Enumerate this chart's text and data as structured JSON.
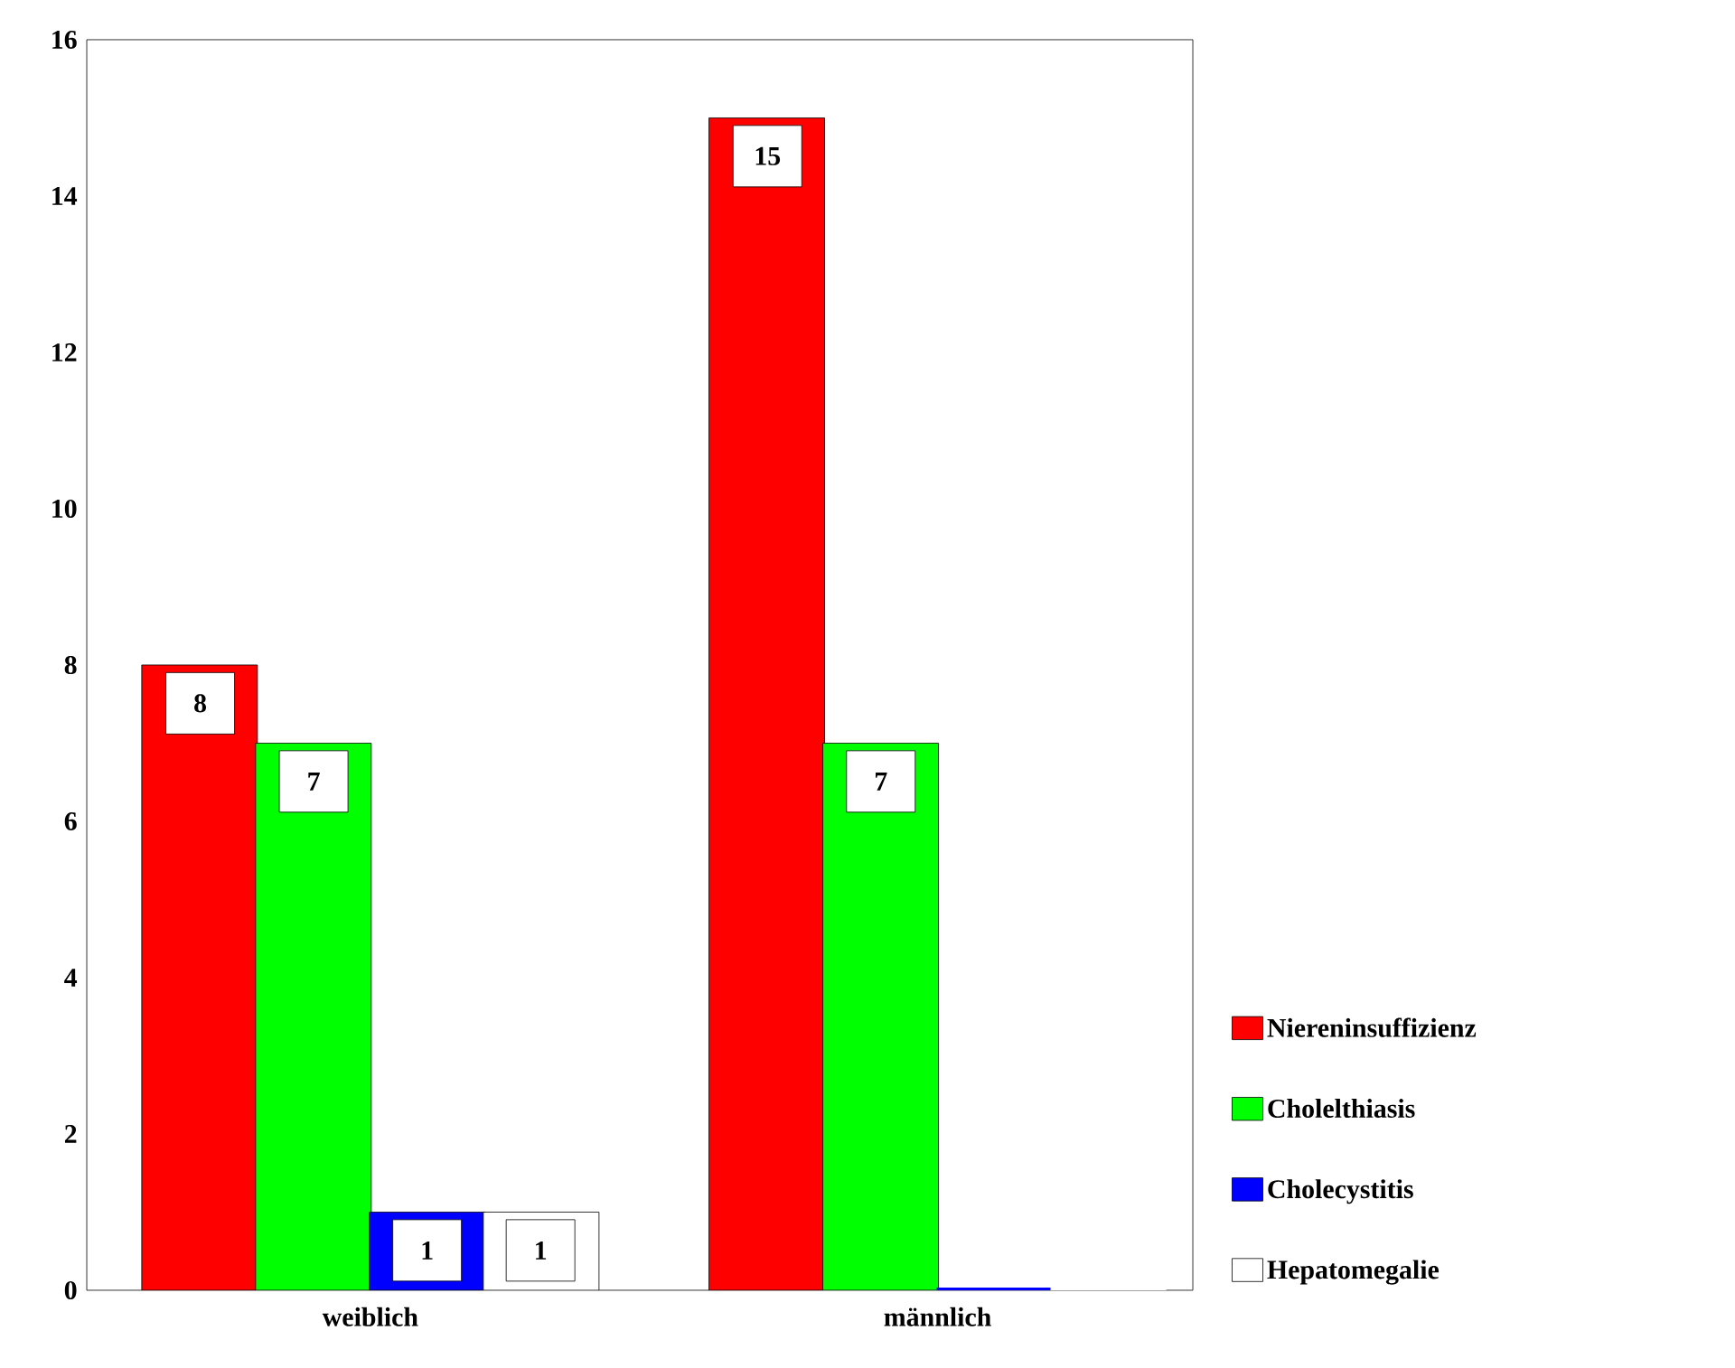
{
  "chart_data": {
    "type": "bar",
    "categories": [
      "weiblich",
      "männlich"
    ],
    "series": [
      {
        "name": "Niereninsuffizienz",
        "color": "#ff0000",
        "values": [
          8,
          15
        ],
        "value_labels": [
          "8",
          "15"
        ]
      },
      {
        "name": "Cholelthiasis",
        "color": "#00ff00",
        "values": [
          7,
          7
        ],
        "value_labels": [
          "7",
          "7"
        ]
      },
      {
        "name": "Cholecystitis",
        "color": "#0000ff",
        "values": [
          1,
          0
        ],
        "value_labels": [
          "1",
          null
        ]
      },
      {
        "name": "Hepatomegalie",
        "color": "#ffffff",
        "values": [
          1,
          0
        ],
        "value_labels": [
          "1",
          null
        ]
      }
    ],
    "ylim": [
      0,
      16
    ],
    "yticks": [
      0,
      2,
      4,
      6,
      8,
      10,
      12,
      14,
      16
    ],
    "grid": false,
    "legend": "right"
  }
}
